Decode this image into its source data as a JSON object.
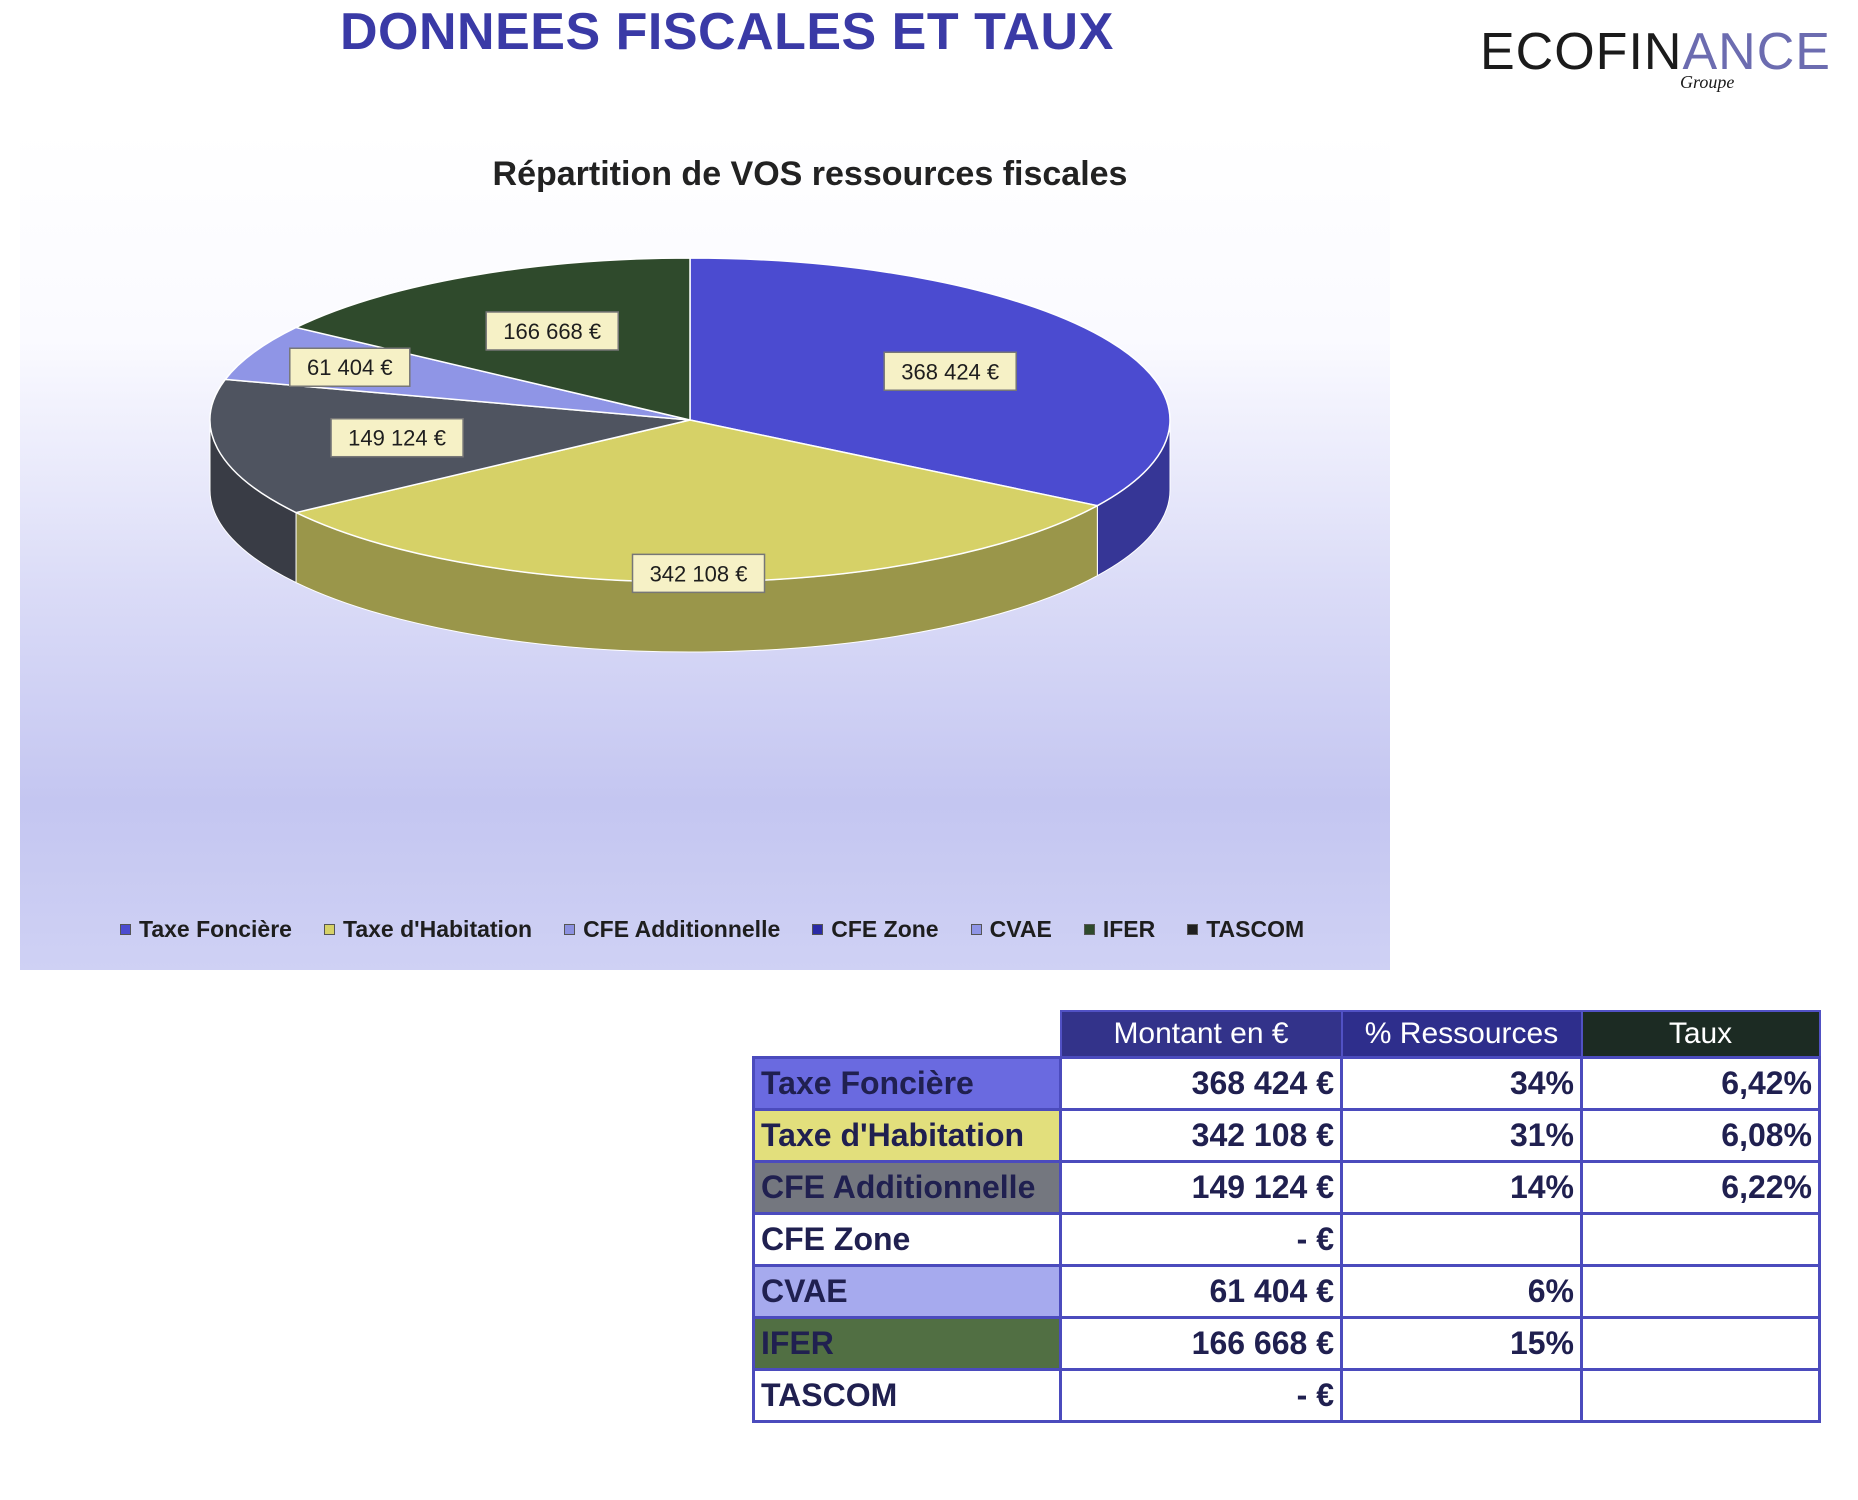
{
  "page": {
    "title": "DONNEES FISCALES ET TAUX",
    "logo": {
      "main_dark": "ECOFIN",
      "main_light": "ANCE",
      "sub": "Groupe"
    }
  },
  "colors": {
    "taxe_fonciere": "#4b4bd0",
    "taxe_habitation": "#d6d167",
    "cfe_additionnelle": "#8c91e0",
    "cfe_zone": "#2a2aa5",
    "cvae": "#8f95e6",
    "ifer": "#2f4a2c",
    "tascom": "#202020",
    "cfe_slice": "#4f5460",
    "header_amount": "#33338a",
    "header_pct": "#2e2e8c",
    "header_rate": "#1c2b23"
  },
  "chart_data": {
    "type": "pie",
    "title": "Répartition de VOS ressources fiscales",
    "categories": [
      "Taxe Foncière",
      "Taxe d'Habitation",
      "CFE Additionnelle",
      "CVAE",
      "IFER"
    ],
    "values": [
      368424,
      342108,
      149124,
      61404,
      166668
    ],
    "value_labels": [
      "368 424 €",
      "342 108 €",
      "149 124 €",
      "61 404 €",
      "166 668 €"
    ],
    "legend": [
      "Taxe Foncière",
      "Taxe d'Habitation",
      "CFE Additionnelle",
      "CFE Zone",
      "CVAE",
      "IFER",
      "TASCOM"
    ],
    "legend_position": "bottom"
  },
  "table": {
    "headers": [
      "Montant  en €",
      "% Ressources",
      "Taux"
    ],
    "rows": [
      {
        "label": "Taxe Foncière",
        "amount": "368 424 €",
        "pct": "34%",
        "rate": "6,42%",
        "color": "#6a6ae0"
      },
      {
        "label": "Taxe d'Habitation",
        "amount": "342 108 €",
        "pct": "31%",
        "rate": "6,08%",
        "color": "#e2df7c"
      },
      {
        "label": "CFE Additionnelle",
        "amount": "149 124 €",
        "pct": "14%",
        "rate": "6,22%",
        "color": "#74777f"
      },
      {
        "label": "CFE Zone",
        "amount": "-    €",
        "pct": "",
        "rate": "",
        "color": "#ffffff"
      },
      {
        "label": "CVAE",
        "amount": "61 404 €",
        "pct": "6%",
        "rate": "",
        "color": "#a6aaee"
      },
      {
        "label": "IFER",
        "amount": "166 668 €",
        "pct": "15%",
        "rate": "",
        "color": "#516f43"
      },
      {
        "label": "TASCOM",
        "amount": "-    €",
        "pct": "",
        "rate": "",
        "color": "#ffffff"
      }
    ]
  }
}
